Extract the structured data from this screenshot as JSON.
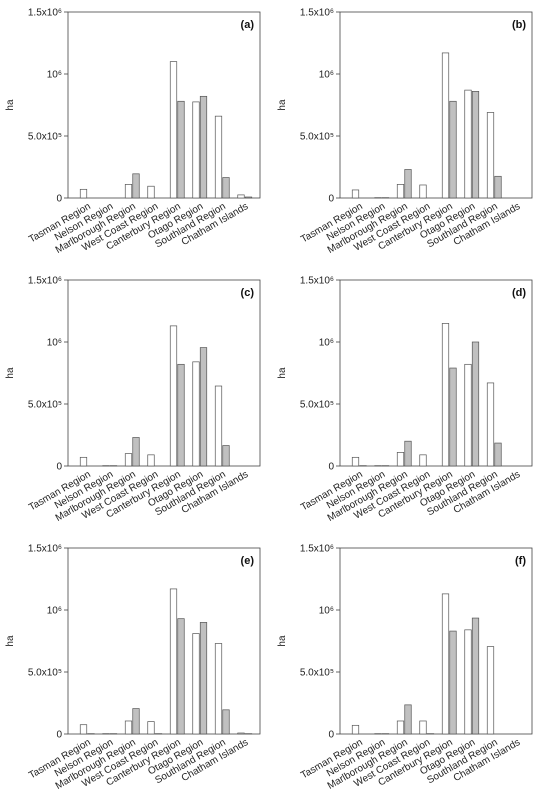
{
  "chart_data": [
    {
      "type": "bar",
      "panel_label": "(a)",
      "ylabel": "ha",
      "ylim": [
        0,
        1500000
      ],
      "yticks": [
        0,
        500000,
        1000000,
        1500000
      ],
      "ytick_labels": [
        "0",
        "5.0x10⁵",
        "10⁶",
        "1.5x10⁶"
      ],
      "categories": [
        "Tasman Region",
        "Nelson Region",
        "Marlborough Region",
        "West Coast Region",
        "Canterbury Region",
        "Otago Region",
        "Southland Region",
        "Chatham Islands"
      ],
      "series": [
        {
          "fill": "#ffffff",
          "values": [
            70000,
            0,
            110000,
            95000,
            1100000,
            775000,
            660000,
            25000
          ]
        },
        {
          "fill": "#c0c0c0",
          "values": [
            0,
            0,
            195000,
            0,
            780000,
            820000,
            165000,
            8000
          ]
        }
      ]
    },
    {
      "type": "bar",
      "panel_label": "(b)",
      "ylabel": "ha",
      "ylim": [
        0,
        1500000
      ],
      "yticks": [
        0,
        500000,
        1000000,
        1500000
      ],
      "ytick_labels": [
        "0",
        "5.0x10⁵",
        "10⁶",
        "1.5x10⁶"
      ],
      "categories": [
        "Tasman Region",
        "Nelson Region",
        "Marlborough Region",
        "West Coast Region",
        "Canterbury Region",
        "Otago Region",
        "Southland Region",
        "Chatham Islands"
      ],
      "series": [
        {
          "fill": "#ffffff",
          "values": [
            65000,
            3000,
            110000,
            105000,
            1170000,
            870000,
            690000,
            0
          ]
        },
        {
          "fill": "#c0c0c0",
          "values": [
            0,
            3000,
            230000,
            0,
            780000,
            860000,
            175000,
            0
          ]
        }
      ]
    },
    {
      "type": "bar",
      "panel_label": "(c)",
      "ylabel": "ha",
      "ylim": [
        0,
        1500000
      ],
      "yticks": [
        0,
        500000,
        1000000,
        1500000
      ],
      "ytick_labels": [
        "0",
        "5.0x10⁵",
        "10⁶",
        "1.5x10⁶"
      ],
      "categories": [
        "Tasman Region",
        "Nelson Region",
        "Marlborough Region",
        "West Coast Region",
        "Canterbury Region",
        "Otago Region",
        "Southland Region",
        "Chatham Islands"
      ],
      "series": [
        {
          "fill": "#ffffff",
          "values": [
            70000,
            3000,
            100000,
            90000,
            1130000,
            840000,
            645000,
            0
          ]
        },
        {
          "fill": "#c0c0c0",
          "values": [
            0,
            3000,
            230000,
            0,
            820000,
            955000,
            165000,
            0
          ]
        }
      ]
    },
    {
      "type": "bar",
      "panel_label": "(d)",
      "ylabel": "ha",
      "ylim": [
        0,
        1500000
      ],
      "yticks": [
        0,
        500000,
        1000000,
        1500000
      ],
      "ytick_labels": [
        "0",
        "5.0x10⁵",
        "10⁶",
        "1.5x10⁶"
      ],
      "categories": [
        "Tasman Region",
        "Nelson Region",
        "Marlborough Region",
        "West Coast Region",
        "Canterbury Region",
        "Otago Region",
        "Southland Region",
        "Chatham Islands"
      ],
      "series": [
        {
          "fill": "#ffffff",
          "values": [
            70000,
            3000,
            110000,
            90000,
            1150000,
            820000,
            670000,
            0
          ]
        },
        {
          "fill": "#c0c0c0",
          "values": [
            3000,
            3000,
            200000,
            0,
            790000,
            1000000,
            185000,
            0
          ]
        }
      ]
    },
    {
      "type": "bar",
      "panel_label": "(e)",
      "ylabel": "ha",
      "ylim": [
        0,
        1500000
      ],
      "yticks": [
        0,
        500000,
        1000000,
        1500000
      ],
      "ytick_labels": [
        "0",
        "5.0x10⁵",
        "10⁶",
        "1.5x10⁶"
      ],
      "categories": [
        "Tasman Region",
        "Nelson Region",
        "Marlborough Region",
        "West Coast Region",
        "Canterbury Region",
        "Otago Region",
        "Southland Region",
        "Chatham Islands"
      ],
      "series": [
        {
          "fill": "#ffffff",
          "values": [
            75000,
            3000,
            105000,
            100000,
            1170000,
            810000,
            730000,
            8000
          ]
        },
        {
          "fill": "#c0c0c0",
          "values": [
            3000,
            3000,
            205000,
            3000,
            930000,
            900000,
            195000,
            3000
          ]
        }
      ]
    },
    {
      "type": "bar",
      "panel_label": "(f)",
      "ylabel": "ha",
      "ylim": [
        0,
        1500000
      ],
      "yticks": [
        0,
        500000,
        1000000,
        1500000
      ],
      "ytick_labels": [
        "0",
        "5.0x10⁵",
        "10⁶",
        "1.5x10⁶"
      ],
      "categories": [
        "Tasman Region",
        "Nelson Region",
        "Marlborough Region",
        "West Coast Region",
        "Canterbury Region",
        "Otago Region",
        "Southland Region",
        "Chatham Islands"
      ],
      "series": [
        {
          "fill": "#ffffff",
          "values": [
            70000,
            3000,
            105000,
            105000,
            1130000,
            840000,
            705000,
            0
          ]
        },
        {
          "fill": "#c0c0c0",
          "values": [
            0,
            3000,
            235000,
            3000,
            830000,
            935000,
            0,
            0
          ]
        }
      ]
    }
  ]
}
